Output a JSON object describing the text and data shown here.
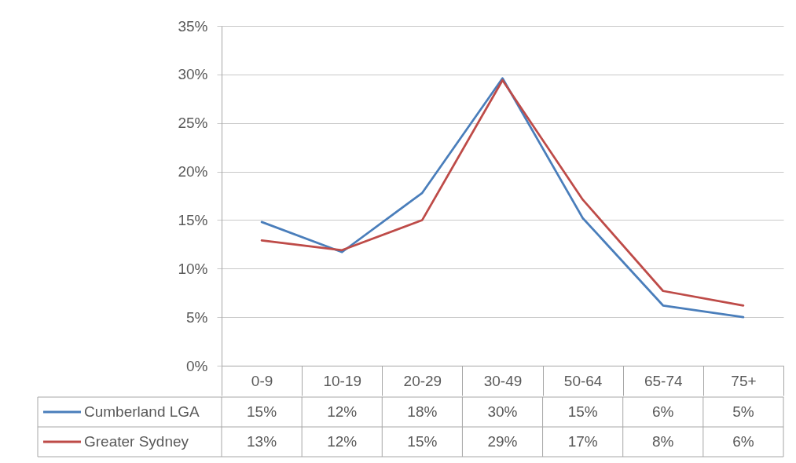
{
  "chart_data": {
    "type": "line",
    "categories": [
      "0-9",
      "10-19",
      "20-29",
      "30-49",
      "50-64",
      "65-74",
      "75+"
    ],
    "series": [
      {
        "name": "Cumberland LGA",
        "color": "#4a7ebb",
        "values": [
          14.8,
          11.7,
          17.8,
          29.6,
          15.2,
          6.2,
          5.0
        ],
        "value_labels": [
          "15%",
          "12%",
          "18%",
          "30%",
          "15%",
          "6%",
          "5%"
        ]
      },
      {
        "name": "Greater Sydney",
        "color": "#be4b48",
        "values": [
          12.9,
          11.9,
          15.0,
          29.4,
          17.1,
          7.7,
          6.2
        ],
        "value_labels": [
          "13%",
          "12%",
          "15%",
          "29%",
          "17%",
          "8%",
          "6%"
        ]
      }
    ],
    "ylim": [
      0,
      35
    ],
    "yticks": [
      {
        "value": 0,
        "label": "0%"
      },
      {
        "value": 5,
        "label": "5%"
      },
      {
        "value": 10,
        "label": "10%"
      },
      {
        "value": 15,
        "label": "15%"
      },
      {
        "value": 20,
        "label": "20%"
      },
      {
        "value": 25,
        "label": "25%"
      },
      {
        "value": 30,
        "label": "30%"
      },
      {
        "value": 35,
        "label": "35%"
      }
    ],
    "grid": "y",
    "legend": "bottom"
  }
}
